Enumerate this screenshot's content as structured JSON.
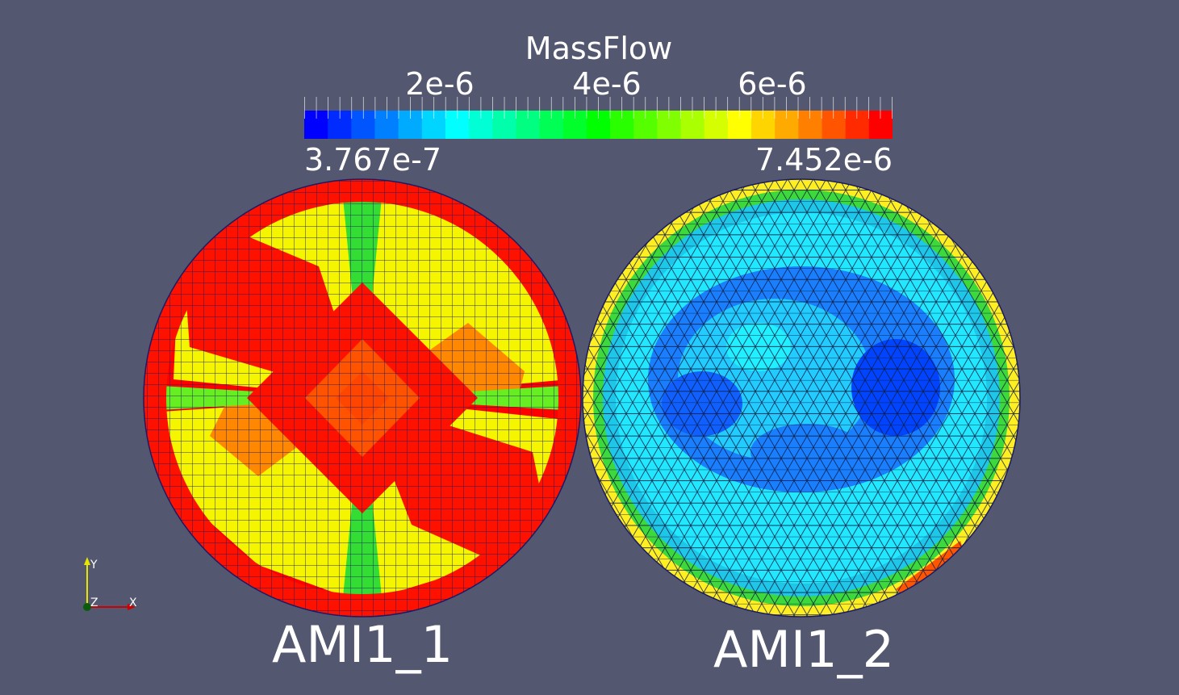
{
  "scalar_bar": {
    "title": "MassFlow",
    "tick_labels": [
      "2e-6",
      "4e-6",
      "6e-6"
    ],
    "tick_values": [
      2e-06,
      4e-06,
      6e-06
    ],
    "range_min_label": "3.767e-7",
    "range_max_label": "7.452e-6",
    "range": [
      3.767e-07,
      7.452e-06
    ],
    "colormap": "rainbow-blue-to-red",
    "colors": {
      "low": "#0000ff",
      "cyan": "#00ffff",
      "green": "#00ff00",
      "yellow": "#ffff00",
      "high": "#ff0000"
    }
  },
  "patches": [
    {
      "label": "AMI1_1",
      "mesh": "quad-structured",
      "dominant_colors": [
        "#ff0000",
        "#ffff00",
        "#ff8800",
        "#33dd33"
      ]
    },
    {
      "label": "AMI1_2",
      "mesh": "triangular",
      "dominant_colors": [
        "#22e8ff",
        "#1a7fff",
        "#0044ff",
        "#33dd33",
        "#ffff00"
      ]
    }
  ],
  "axes": {
    "x_label": "X",
    "y_label": "Y",
    "z_label": "Z",
    "x_color": "#cc0000",
    "y_color": "#e6e600",
    "z_color": "#0a5c0a"
  },
  "background_color": "#535770"
}
